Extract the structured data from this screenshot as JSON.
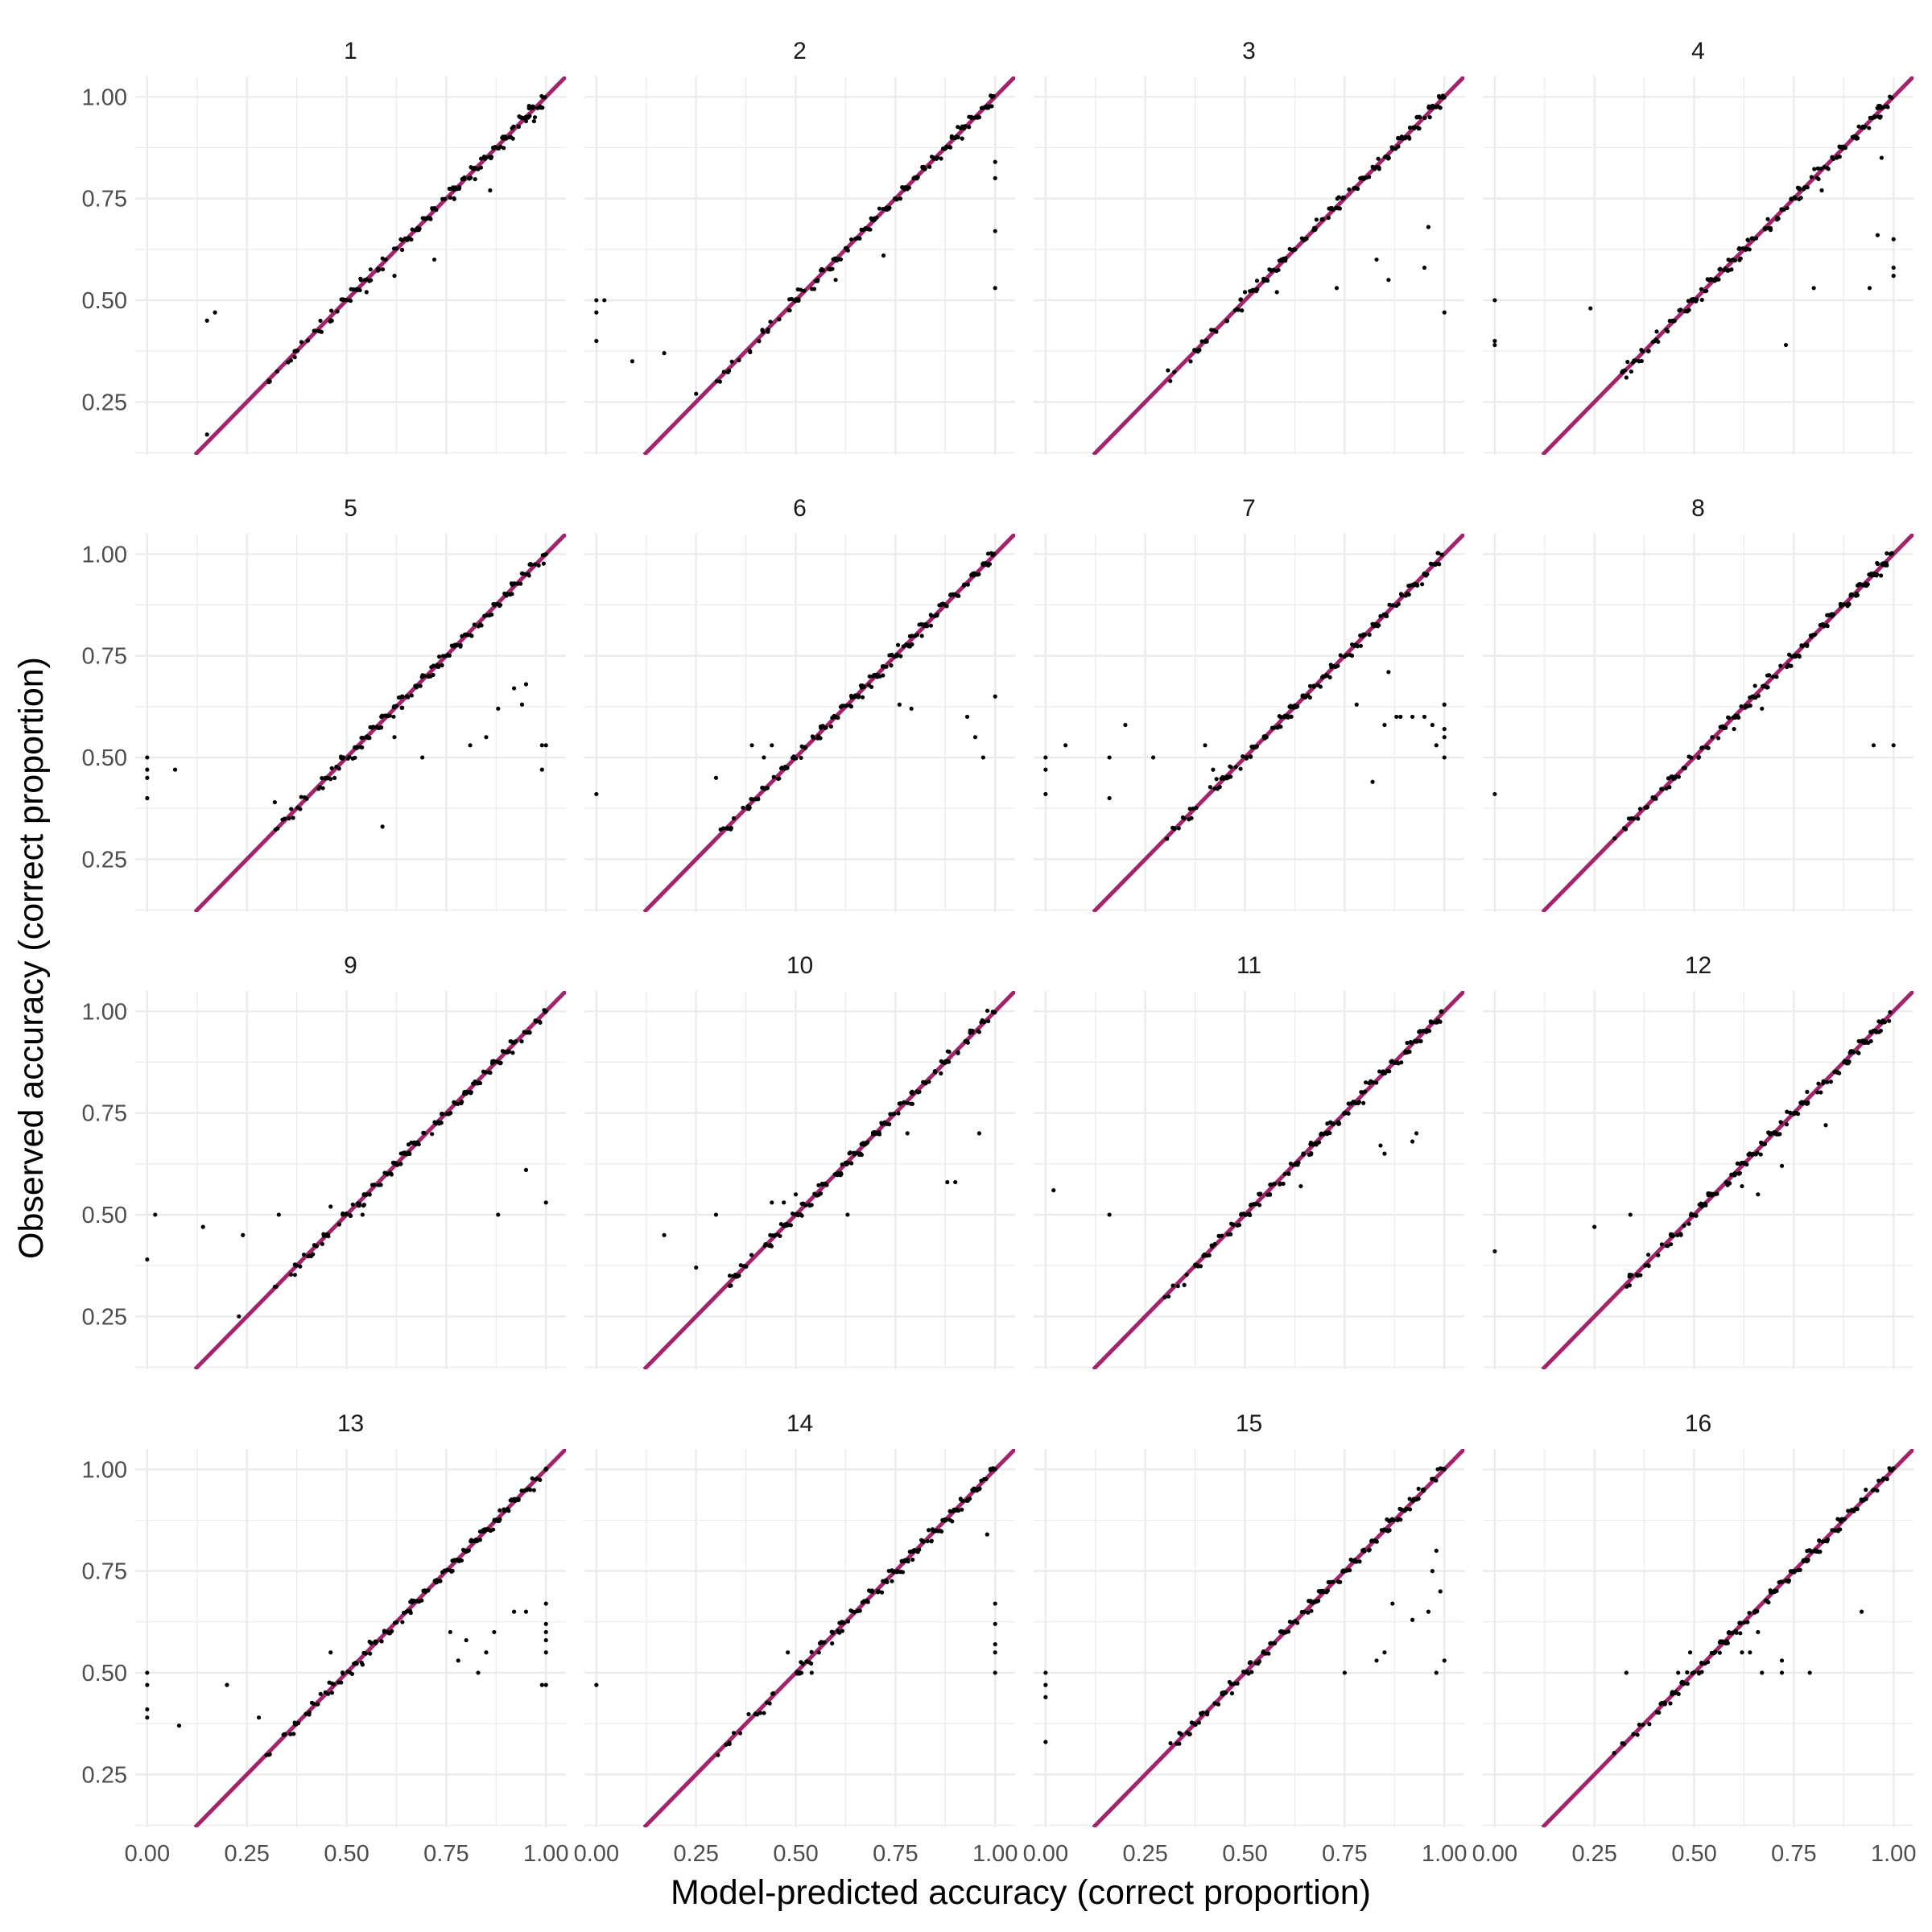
{
  "chart_data": {
    "type": "scatter",
    "layout": "facet-grid-4x4",
    "title": "",
    "xlabel": "Model-predicted accuracy (correct proportion)",
    "ylabel": "Observed accuracy (correct proportion)",
    "xlim": [
      -0.03,
      1.05
    ],
    "ylim": [
      0.12,
      1.05
    ],
    "x_ticks": [
      0.0,
      0.25,
      0.5,
      0.75,
      1.0
    ],
    "x_tick_labels": [
      "0.00",
      "0.25",
      "0.50",
      "0.75",
      "1.00"
    ],
    "y_ticks": [
      0.25,
      0.5,
      0.75,
      1.0
    ],
    "y_tick_labels": [
      "0.25",
      "0.50",
      "0.75",
      "1.00"
    ],
    "grid": true,
    "reference_line": {
      "type": "identity",
      "slope": 1,
      "intercept": 0,
      "color": "#A3246B"
    },
    "point_color": "#000000",
    "background_color": "#ffffff",
    "grid_color": "#EBEBEB",
    "facets": [
      {
        "label": "1",
        "diagonal_points": 170,
        "outliers": [
          [
            0.15,
            0.45
          ],
          [
            0.17,
            0.47
          ],
          [
            0.15,
            0.17
          ],
          [
            0.37,
            0.36
          ],
          [
            0.62,
            0.56
          ],
          [
            0.72,
            0.6
          ],
          [
            0.86,
            0.77
          ],
          [
            0.55,
            0.52
          ],
          [
            0.95,
            0.94
          ],
          [
            0.97,
            0.94
          ]
        ]
      },
      {
        "label": "2",
        "diagonal_points": 170,
        "outliers": [
          [
            0.0,
            0.5
          ],
          [
            0.02,
            0.5
          ],
          [
            0.0,
            0.47
          ],
          [
            0.0,
            0.4
          ],
          [
            0.09,
            0.35
          ],
          [
            0.17,
            0.37
          ],
          [
            0.25,
            0.27
          ],
          [
            1.0,
            0.84
          ],
          [
            1.0,
            0.8
          ],
          [
            1.0,
            0.67
          ],
          [
            1.0,
            0.53
          ],
          [
            0.72,
            0.61
          ],
          [
            0.6,
            0.55
          ]
        ]
      },
      {
        "label": "3",
        "diagonal_points": 170,
        "outliers": [
          [
            0.73,
            0.53
          ],
          [
            0.83,
            0.6
          ],
          [
            0.86,
            0.55
          ],
          [
            0.96,
            0.68
          ],
          [
            0.95,
            0.58
          ],
          [
            1.0,
            0.47
          ],
          [
            0.58,
            0.52
          ],
          [
            0.5,
            0.52
          ]
        ]
      },
      {
        "label": "4",
        "diagonal_points": 170,
        "outliers": [
          [
            0.0,
            0.5
          ],
          [
            0.0,
            0.4
          ],
          [
            0.0,
            0.39
          ],
          [
            0.24,
            0.48
          ],
          [
            0.33,
            0.31
          ],
          [
            0.73,
            0.39
          ],
          [
            0.8,
            0.53
          ],
          [
            0.94,
            0.53
          ],
          [
            0.96,
            0.66
          ],
          [
            1.0,
            0.65
          ],
          [
            1.0,
            0.58
          ],
          [
            1.0,
            0.56
          ],
          [
            0.97,
            0.85
          ],
          [
            0.82,
            0.77
          ]
        ]
      },
      {
        "label": "5",
        "diagonal_points": 170,
        "outliers": [
          [
            0.0,
            0.5
          ],
          [
            0.0,
            0.47
          ],
          [
            0.0,
            0.45
          ],
          [
            0.0,
            0.4
          ],
          [
            0.07,
            0.47
          ],
          [
            0.32,
            0.39
          ],
          [
            0.59,
            0.33
          ],
          [
            0.69,
            0.5
          ],
          [
            0.81,
            0.53
          ],
          [
            0.85,
            0.55
          ],
          [
            0.88,
            0.62
          ],
          [
            0.92,
            0.67
          ],
          [
            0.94,
            0.63
          ],
          [
            0.95,
            0.68
          ],
          [
            0.99,
            0.53
          ],
          [
            1.0,
            0.53
          ],
          [
            0.99,
            0.47
          ],
          [
            0.62,
            0.55
          ]
        ]
      },
      {
        "label": "6",
        "diagonal_points": 170,
        "outliers": [
          [
            0.0,
            0.41
          ],
          [
            0.3,
            0.45
          ],
          [
            0.39,
            0.53
          ],
          [
            0.42,
            0.5
          ],
          [
            0.44,
            0.53
          ],
          [
            0.76,
            0.63
          ],
          [
            0.79,
            0.62
          ],
          [
            0.93,
            0.6
          ],
          [
            0.95,
            0.55
          ],
          [
            0.97,
            0.5
          ],
          [
            1.0,
            0.65
          ],
          [
            0.38,
            0.38
          ]
        ]
      },
      {
        "label": "7",
        "diagonal_points": 170,
        "outliers": [
          [
            0.0,
            0.5
          ],
          [
            0.0,
            0.47
          ],
          [
            0.0,
            0.41
          ],
          [
            0.05,
            0.53
          ],
          [
            0.16,
            0.5
          ],
          [
            0.16,
            0.4
          ],
          [
            0.2,
            0.58
          ],
          [
            0.27,
            0.5
          ],
          [
            0.4,
            0.53
          ],
          [
            0.42,
            0.47
          ],
          [
            0.78,
            0.63
          ],
          [
            0.82,
            0.44
          ],
          [
            0.85,
            0.58
          ],
          [
            0.86,
            0.71
          ],
          [
            0.88,
            0.6
          ],
          [
            0.89,
            0.6
          ],
          [
            0.92,
            0.6
          ],
          [
            0.95,
            0.6
          ],
          [
            0.97,
            0.58
          ],
          [
            1.0,
            0.63
          ],
          [
            1.0,
            0.57
          ],
          [
            1.0,
            0.55
          ],
          [
            1.0,
            0.5
          ],
          [
            0.98,
            0.53
          ]
        ]
      },
      {
        "label": "8",
        "diagonal_points": 170,
        "outliers": [
          [
            0.0,
            0.41
          ],
          [
            0.95,
            0.53
          ],
          [
            1.0,
            0.53
          ],
          [
            0.6,
            0.57
          ],
          [
            0.67,
            0.62
          ]
        ]
      },
      {
        "label": "9",
        "diagonal_points": 170,
        "outliers": [
          [
            0.0,
            0.39
          ],
          [
            0.02,
            0.5
          ],
          [
            0.14,
            0.47
          ],
          [
            0.24,
            0.45
          ],
          [
            0.33,
            0.5
          ],
          [
            0.46,
            0.52
          ],
          [
            0.54,
            0.5
          ],
          [
            0.88,
            0.5
          ],
          [
            0.95,
            0.61
          ],
          [
            1.0,
            0.53
          ],
          [
            0.23,
            0.25
          ]
        ]
      },
      {
        "label": "10",
        "diagonal_points": 170,
        "outliers": [
          [
            0.17,
            0.45
          ],
          [
            0.25,
            0.37
          ],
          [
            0.3,
            0.5
          ],
          [
            0.44,
            0.53
          ],
          [
            0.47,
            0.53
          ],
          [
            0.5,
            0.55
          ],
          [
            0.63,
            0.5
          ],
          [
            0.78,
            0.7
          ],
          [
            0.88,
            0.58
          ],
          [
            0.9,
            0.58
          ],
          [
            0.96,
            0.7
          ]
        ]
      },
      {
        "label": "11",
        "diagonal_points": 170,
        "outliers": [
          [
            0.02,
            0.56
          ],
          [
            0.16,
            0.5
          ],
          [
            0.5,
            0.5
          ],
          [
            0.64,
            0.57
          ],
          [
            0.84,
            0.67
          ],
          [
            0.85,
            0.65
          ],
          [
            0.92,
            0.68
          ],
          [
            0.93,
            0.7
          ],
          [
            0.6,
            0.6
          ]
        ]
      },
      {
        "label": "12",
        "diagonal_points": 170,
        "outliers": [
          [
            0.0,
            0.41
          ],
          [
            0.25,
            0.47
          ],
          [
            0.34,
            0.5
          ],
          [
            0.52,
            0.52
          ],
          [
            0.58,
            0.58
          ],
          [
            0.62,
            0.57
          ],
          [
            0.66,
            0.55
          ],
          [
            0.72,
            0.62
          ],
          [
            0.83,
            0.72
          ]
        ]
      },
      {
        "label": "13",
        "diagonal_points": 170,
        "outliers": [
          [
            0.0,
            0.5
          ],
          [
            0.0,
            0.47
          ],
          [
            0.0,
            0.41
          ],
          [
            0.0,
            0.39
          ],
          [
            0.08,
            0.37
          ],
          [
            0.2,
            0.47
          ],
          [
            0.28,
            0.39
          ],
          [
            0.46,
            0.55
          ],
          [
            0.54,
            0.52
          ],
          [
            0.76,
            0.6
          ],
          [
            0.78,
            0.53
          ],
          [
            0.8,
            0.58
          ],
          [
            0.83,
            0.5
          ],
          [
            0.85,
            0.55
          ],
          [
            0.87,
            0.6
          ],
          [
            0.92,
            0.65
          ],
          [
            0.95,
            0.65
          ],
          [
            1.0,
            0.67
          ],
          [
            1.0,
            0.62
          ],
          [
            1.0,
            0.6
          ],
          [
            1.0,
            0.58
          ],
          [
            1.0,
            0.55
          ],
          [
            1.0,
            0.47
          ],
          [
            0.99,
            0.47
          ]
        ]
      },
      {
        "label": "14",
        "diagonal_points": 170,
        "outliers": [
          [
            0.0,
            0.47
          ],
          [
            0.48,
            0.55
          ],
          [
            0.98,
            0.84
          ],
          [
            1.0,
            0.67
          ],
          [
            1.0,
            0.62
          ],
          [
            1.0,
            0.57
          ],
          [
            1.0,
            0.55
          ],
          [
            1.0,
            0.5
          ],
          [
            0.54,
            0.5
          ]
        ]
      },
      {
        "label": "15",
        "diagonal_points": 170,
        "outliers": [
          [
            0.0,
            0.5
          ],
          [
            0.0,
            0.47
          ],
          [
            0.0,
            0.44
          ],
          [
            0.0,
            0.33
          ],
          [
            0.75,
            0.5
          ],
          [
            0.83,
            0.53
          ],
          [
            0.85,
            0.55
          ],
          [
            0.87,
            0.67
          ],
          [
            0.92,
            0.63
          ],
          [
            0.96,
            0.65
          ],
          [
            0.97,
            0.75
          ],
          [
            0.98,
            0.8
          ],
          [
            0.99,
            0.7
          ],
          [
            0.98,
            0.5
          ],
          [
            1.0,
            0.53
          ]
        ]
      },
      {
        "label": "16",
        "diagonal_points": 170,
        "outliers": [
          [
            0.33,
            0.5
          ],
          [
            0.46,
            0.5
          ],
          [
            0.49,
            0.55
          ],
          [
            0.62,
            0.55
          ],
          [
            0.64,
            0.55
          ],
          [
            0.67,
            0.5
          ],
          [
            0.72,
            0.5
          ],
          [
            0.72,
            0.53
          ],
          [
            0.79,
            0.5
          ],
          [
            0.92,
            0.65
          ],
          [
            0.66,
            0.6
          ]
        ]
      }
    ]
  }
}
